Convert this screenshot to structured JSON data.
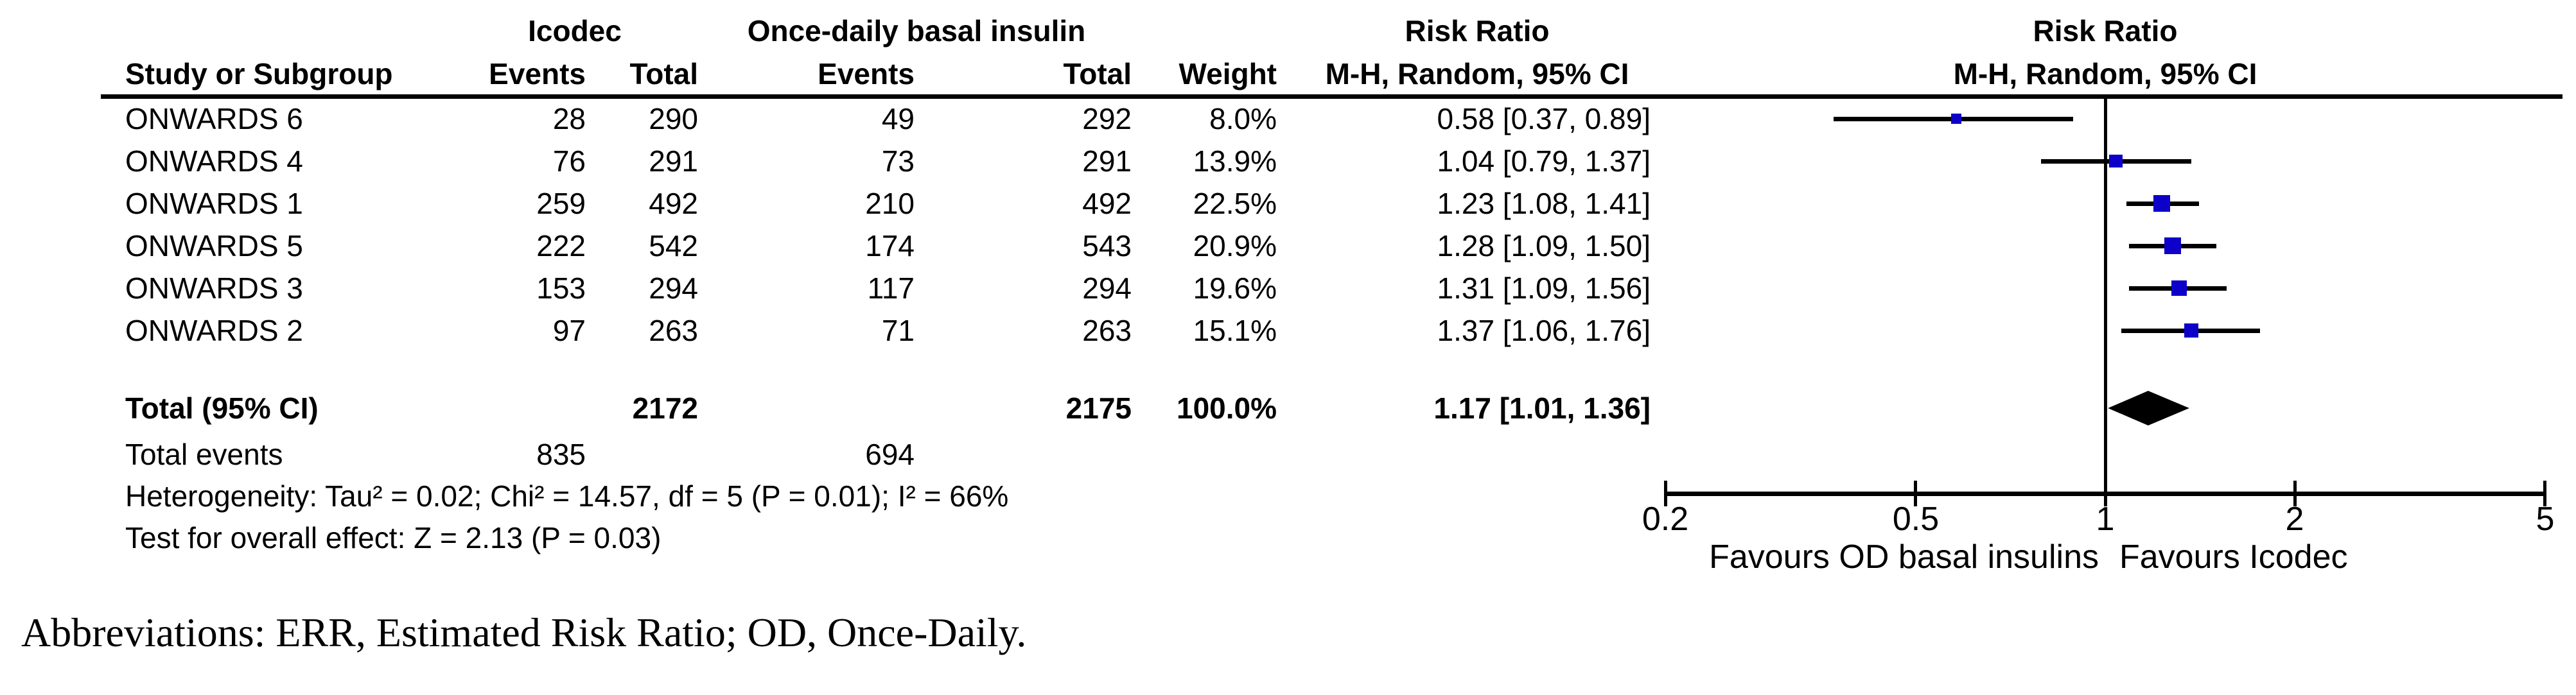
{
  "headers": {
    "group1": "Icodec",
    "group2": "Once-daily basal insulin",
    "risk_ratio": "Risk Ratio",
    "mh_ci": "M-H, Random, 95% CI",
    "study": "Study or Subgroup",
    "events": "Events",
    "total": "Total",
    "weight": "Weight"
  },
  "studies": [
    {
      "name": "ONWARDS 6",
      "icodec_events": "28",
      "icodec_total": "290",
      "od_events": "49",
      "od_total": "292",
      "weight": "8.0%",
      "rr_ci": "0.58 [0.37, 0.89]"
    },
    {
      "name": "ONWARDS 4",
      "icodec_events": "76",
      "icodec_total": "291",
      "od_events": "73",
      "od_total": "291",
      "weight": "13.9%",
      "rr_ci": "1.04 [0.79, 1.37]"
    },
    {
      "name": "ONWARDS 1",
      "icodec_events": "259",
      "icodec_total": "492",
      "od_events": "210",
      "od_total": "492",
      "weight": "22.5%",
      "rr_ci": "1.23 [1.08, 1.41]"
    },
    {
      "name": "ONWARDS 5",
      "icodec_events": "222",
      "icodec_total": "542",
      "od_events": "174",
      "od_total": "543",
      "weight": "20.9%",
      "rr_ci": "1.28 [1.09, 1.50]"
    },
    {
      "name": "ONWARDS 3",
      "icodec_events": "153",
      "icodec_total": "294",
      "od_events": "117",
      "od_total": "294",
      "weight": "19.6%",
      "rr_ci": "1.31 [1.09, 1.56]"
    },
    {
      "name": "ONWARDS 2",
      "icodec_events": "97",
      "icodec_total": "263",
      "od_events": "71",
      "od_total": "263",
      "weight": "15.1%",
      "rr_ci": "1.37 [1.06, 1.76]"
    }
  ],
  "total_row": {
    "label": "Total (95% CI)",
    "icodec_total": "2172",
    "od_total": "2175",
    "weight": "100.0%",
    "rr_ci": "1.17 [1.01, 1.36]"
  },
  "total_events": {
    "label": "Total events",
    "icodec": "835",
    "od": "694"
  },
  "heterogeneity": "Heterogeneity: Tau² = 0.02; Chi² = 14.57, df = 5 (P = 0.01); I² = 66%",
  "overall_effect": "Test for overall effect: Z = 2.13 (P = 0.03)",
  "abbreviations": "Abbreviations: ERR, Estimated Risk Ratio; OD, Once-Daily.",
  "chart_data": {
    "type": "forest",
    "effect_measure": "Risk Ratio",
    "method": "M-H, Random, 95% CI",
    "x_scale": "log10",
    "xlim": [
      0.2,
      5
    ],
    "axis_ticks": [
      "0.2",
      "0.5",
      "1",
      "2",
      "5"
    ],
    "reference_line": 1,
    "marker_color": "#0d00c9",
    "diamond_color": "#000000",
    "favours_left": "Favours OD basal insulins",
    "favours_right": "Favours Icodec",
    "studies": [
      {
        "name": "ONWARDS 6",
        "rr": 0.58,
        "ci_low": 0.37,
        "ci_high": 0.89,
        "weight_pct": 8.0
      },
      {
        "name": "ONWARDS 4",
        "rr": 1.04,
        "ci_low": 0.79,
        "ci_high": 1.37,
        "weight_pct": 13.9
      },
      {
        "name": "ONWARDS 1",
        "rr": 1.23,
        "ci_low": 1.08,
        "ci_high": 1.41,
        "weight_pct": 22.5
      },
      {
        "name": "ONWARDS 5",
        "rr": 1.28,
        "ci_low": 1.09,
        "ci_high": 1.5,
        "weight_pct": 20.9
      },
      {
        "name": "ONWARDS 3",
        "rr": 1.31,
        "ci_low": 1.09,
        "ci_high": 1.56,
        "weight_pct": 19.6
      },
      {
        "name": "ONWARDS 2",
        "rr": 1.37,
        "ci_low": 1.06,
        "ci_high": 1.76,
        "weight_pct": 15.1
      }
    ],
    "total": {
      "label": "Total (95% CI)",
      "rr": 1.17,
      "ci_low": 1.01,
      "ci_high": 1.36,
      "weight_pct": 100.0
    }
  }
}
